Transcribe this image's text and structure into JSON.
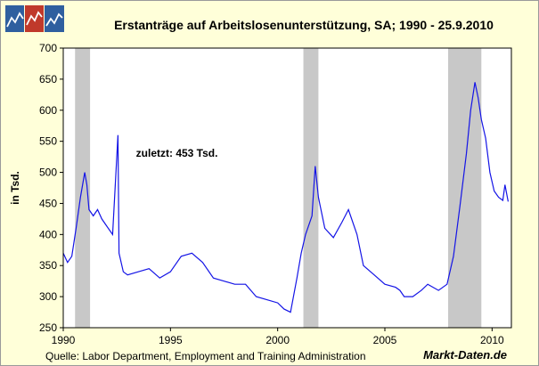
{
  "title": "Erstanträge auf Arbeitslosenunterstützung, SA;  1990 - 25.9.2010",
  "source": "Quelle: Labor Department, Employment and Training Administration",
  "brand": "Markt-Daten.de",
  "colors": {
    "line": "#1414e6",
    "recession": "#c8c8c8",
    "background": "#ffffd9",
    "plot": "#ffffff"
  },
  "chart_data": {
    "type": "line",
    "title": "Erstanträge auf Arbeitslosenunterstützung, SA;  1990 - 25.9.2010",
    "ylabel": "in Tsd.",
    "xlabel": "",
    "xlim": [
      1990,
      2010.9
    ],
    "ylim": [
      250,
      700
    ],
    "xticks": [
      1990,
      1995,
      2000,
      2005,
      2010
    ],
    "xtick_labels": [
      "1990",
      "1995",
      "2000",
      "2005",
      "2010"
    ],
    "yticks": [
      250,
      300,
      350,
      400,
      450,
      500,
      550,
      600,
      650,
      700
    ],
    "ytick_labels": [
      "250",
      "300",
      "350",
      "400",
      "450",
      "500",
      "550",
      "600",
      "650",
      "700"
    ],
    "annotation": "zuletzt: 453 Tsd.",
    "recessions": [
      [
        1990.55,
        1991.25
      ],
      [
        2001.2,
        2001.9
      ],
      [
        2007.95,
        2009.5
      ]
    ],
    "series": [
      {
        "name": "Erstanträge",
        "x": [
          1990.0,
          1990.2,
          1990.4,
          1990.6,
          1990.8,
          1991.0,
          1991.1,
          1991.2,
          1991.4,
          1991.6,
          1991.8,
          1992.0,
          1992.3,
          1992.55,
          1992.6,
          1992.8,
          1993.0,
          1993.5,
          1994.0,
          1994.5,
          1995.0,
          1995.5,
          1996.0,
          1996.5,
          1997.0,
          1997.5,
          1998.0,
          1998.5,
          1999.0,
          1999.5,
          2000.0,
          2000.3,
          2000.6,
          2000.9,
          2001.1,
          2001.3,
          2001.6,
          2001.75,
          2001.9,
          2002.2,
          2002.6,
          2003.0,
          2003.3,
          2003.7,
          2004.0,
          2004.5,
          2005.0,
          2005.5,
          2005.7,
          2005.9,
          2006.3,
          2006.7,
          2007.0,
          2007.5,
          2007.9,
          2008.2,
          2008.5,
          2008.8,
          2009.0,
          2009.2,
          2009.35,
          2009.5,
          2009.7,
          2009.9,
          2010.1,
          2010.3,
          2010.5,
          2010.6,
          2010.75
        ],
        "y": [
          370,
          355,
          365,
          410,
          460,
          500,
          480,
          440,
          430,
          440,
          425,
          415,
          400,
          560,
          370,
          340,
          335,
          340,
          345,
          330,
          340,
          365,
          370,
          355,
          330,
          325,
          320,
          320,
          300,
          295,
          290,
          280,
          275,
          330,
          370,
          400,
          430,
          510,
          460,
          410,
          395,
          420,
          440,
          400,
          350,
          335,
          320,
          315,
          310,
          300,
          300,
          310,
          320,
          310,
          320,
          365,
          445,
          530,
          600,
          645,
          620,
          585,
          555,
          500,
          470,
          460,
          455,
          480,
          453
        ]
      }
    ]
  }
}
